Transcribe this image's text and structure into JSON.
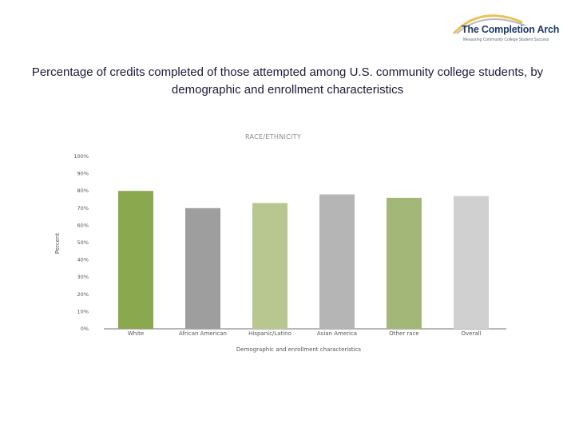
{
  "logo": {
    "name": "The Completion Arch",
    "tagline": "Measuring Community College Student Success",
    "colors": {
      "arc_gold": "#e8c25a",
      "arc_gray": "#b9b9b9",
      "text": "#1f3a6b"
    }
  },
  "page_title": "Percentage of credits completed of those attempted among U.S. community college students, by demographic and enrollment characteristics",
  "chart_data": {
    "type": "bar",
    "title": "RACE/ETHNICITY",
    "xlabel": "Demographic and enrollment characteristics",
    "ylabel": "Percent",
    "ylim": [
      0,
      100
    ],
    "yticks": [
      "0%",
      "10%",
      "20%",
      "30%",
      "40%",
      "50%",
      "60%",
      "70%",
      "80%",
      "90%",
      "100%"
    ],
    "categories": [
      "White",
      "African American",
      "Hispanic/Latino",
      "Asian America",
      "Other race",
      "Overall"
    ],
    "values": [
      80,
      70,
      73,
      78,
      76,
      77
    ],
    "colors": [
      "#8aa84e",
      "#9e9e9e",
      "#b8c78f",
      "#b5b5b5",
      "#a3b878",
      "#d0d0d0"
    ],
    "grid": false
  }
}
